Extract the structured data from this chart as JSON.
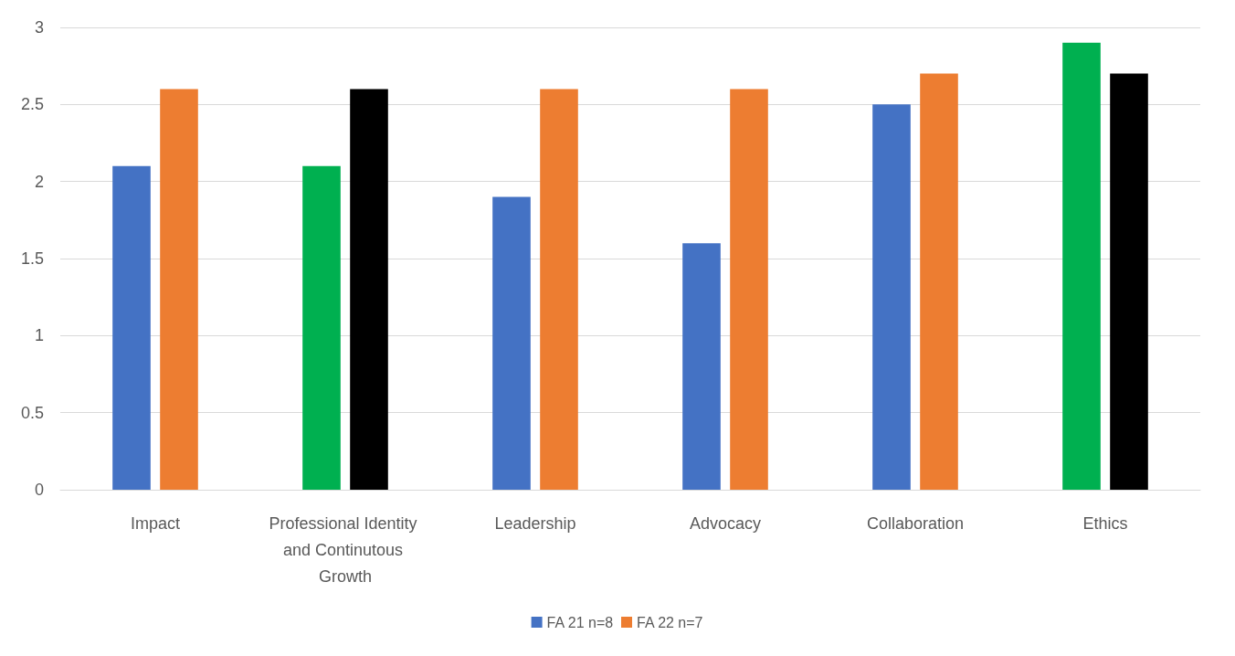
{
  "chart_data": {
    "type": "bar",
    "categories": [
      "Impact",
      "Professional Identity and Continutous Growth",
      "Leadership",
      "Advocacy",
      "Collaboration",
      "Ethics"
    ],
    "series": [
      {
        "name": "FA 21 n=8",
        "color": "#4472c4",
        "colors": [
          "#4472c4",
          "#00b050",
          "#4472c4",
          "#4472c4",
          "#4472c4",
          "#00b050"
        ],
        "values": [
          2.1,
          2.1,
          1.9,
          1.6,
          2.5,
          2.9
        ]
      },
      {
        "name": "FA 22 n=7",
        "color": "#ed7d31",
        "colors": [
          "#ed7d31",
          "#000000",
          "#ed7d31",
          "#ed7d31",
          "#ed7d31",
          "#000000"
        ],
        "values": [
          2.6,
          2.6,
          2.6,
          2.6,
          2.7,
          2.7
        ]
      }
    ],
    "ylim": [
      0,
      3
    ],
    "yticks": [
      0,
      0.5,
      1,
      1.5,
      2,
      2.5,
      3
    ],
    "grid": "y",
    "legend": "bottom"
  }
}
